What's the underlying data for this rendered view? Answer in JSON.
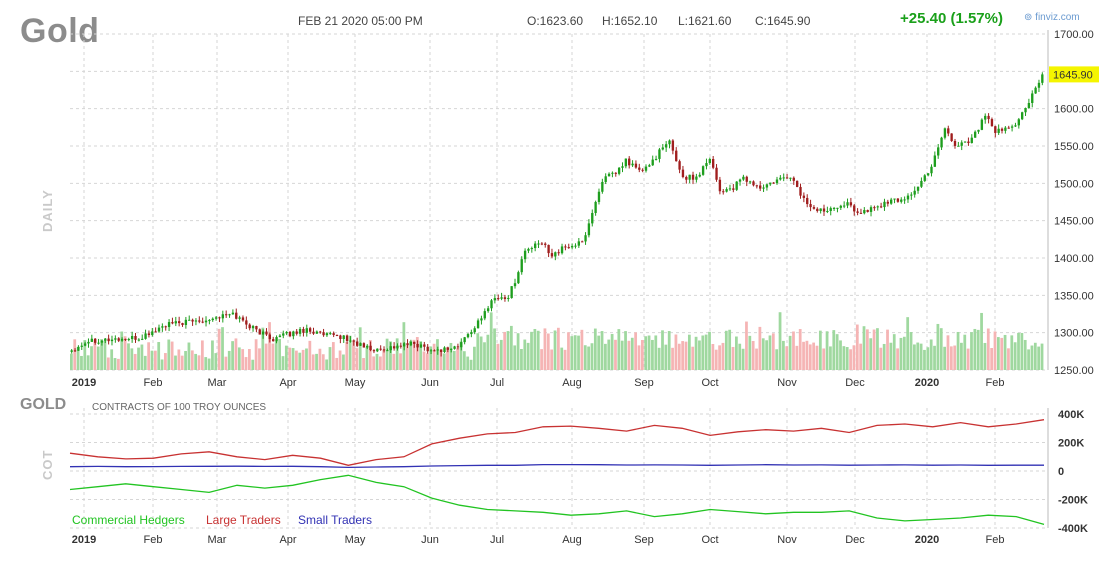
{
  "header": {
    "symbol": "Gold",
    "datetime": "FEB 21 2020 05:00 PM",
    "open": "O:1623.60",
    "high": "H:1652.10",
    "low": "L:1621.60",
    "close": "C:1645.90",
    "change": "+25.40 (1.57%)",
    "brand": "finviz.com",
    "period_label": "DAILY"
  },
  "cot": {
    "title": "GOLD",
    "caption": "CONTRACTS OF 100 TROY OUNCES",
    "side_label": "COT",
    "legend": [
      {
        "label": "Commercial Hedgers",
        "color": "#22c422"
      },
      {
        "label": "Large Traders",
        "color": "#c83232"
      },
      {
        "label": "Small Traders",
        "color": "#3232b4"
      }
    ]
  },
  "colors": {
    "up": "#1e9e1e",
    "down": "#a01e1e",
    "vol_up": "#9fd89f",
    "vol_down": "#f5b4b4",
    "grid": "#d6d6d6",
    "last_price_bg": "#f5f500"
  },
  "chart_data": [
    {
      "type": "candlestick",
      "title": "Gold",
      "x_labels": [
        "2019",
        "Feb",
        "Mar",
        "Apr",
        "May",
        "Jun",
        "Jul",
        "Aug",
        "Sep",
        "Oct",
        "Nov",
        "Dec",
        "2020",
        "Feb"
      ],
      "y_ticks": [
        "1700.00",
        "1650.00",
        "1600.00",
        "1550.00",
        "1500.00",
        "1450.00",
        "1400.00",
        "1350.00",
        "1300.00",
        "1250.00"
      ],
      "ylim": [
        1250,
        1700
      ],
      "last_price": "1645.90",
      "grid": true,
      "price_path": [
        [
          0,
          1277
        ],
        [
          5,
          1290
        ],
        [
          20,
          1292
        ],
        [
          28,
          1310
        ],
        [
          40,
          1318
        ],
        [
          48,
          1325
        ],
        [
          55,
          1303
        ],
        [
          60,
          1292
        ],
        [
          70,
          1305
        ],
        [
          75,
          1296
        ],
        [
          80,
          1295
        ],
        [
          85,
          1285
        ],
        [
          90,
          1276
        ],
        [
          97,
          1282
        ],
        [
          102,
          1285
        ],
        [
          108,
          1276
        ],
        [
          115,
          1281
        ],
        [
          118,
          1298
        ],
        [
          122,
          1318
        ],
        [
          125,
          1345
        ],
        [
          130,
          1348
        ],
        [
          132,
          1370
        ],
        [
          135,
          1410
        ],
        [
          140,
          1420
        ],
        [
          143,
          1405
        ],
        [
          148,
          1416
        ],
        [
          152,
          1420
        ],
        [
          155,
          1460
        ],
        [
          158,
          1505
        ],
        [
          162,
          1513
        ],
        [
          165,
          1530
        ],
        [
          170,
          1515
        ],
        [
          175,
          1542
        ],
        [
          178,
          1555
        ],
        [
          182,
          1508
        ],
        [
          186,
          1508
        ],
        [
          190,
          1536
        ],
        [
          193,
          1490
        ],
        [
          197,
          1494
        ],
        [
          200,
          1507
        ],
        [
          205,
          1493
        ],
        [
          210,
          1503
        ],
        [
          214,
          1510
        ],
        [
          218,
          1478
        ],
        [
          222,
          1462
        ],
        [
          230,
          1474
        ],
        [
          235,
          1460
        ],
        [
          242,
          1473
        ],
        [
          248,
          1480
        ],
        [
          252,
          1494
        ],
        [
          256,
          1524
        ],
        [
          258,
          1550
        ],
        [
          260,
          1575
        ],
        [
          263,
          1550
        ],
        [
          268,
          1560
        ],
        [
          272,
          1590
        ],
        [
          275,
          1568
        ],
        [
          280,
          1575
        ],
        [
          284,
          1600
        ],
        [
          287,
          1625
        ],
        [
          289,
          1646
        ]
      ],
      "volume_note": "daily volume bars colored by candle direction"
    },
    {
      "type": "line",
      "title": "COT",
      "x_labels": [
        "2019",
        "Feb",
        "Mar",
        "Apr",
        "May",
        "Jun",
        "Jul",
        "Aug",
        "Sep",
        "Oct",
        "Nov",
        "Dec",
        "2020",
        "Feb"
      ],
      "y_ticks": [
        "400K",
        "200K",
        "0",
        "-200K",
        "-400K"
      ],
      "ylim": [
        -400000,
        400000
      ],
      "series": [
        {
          "name": "Large Traders",
          "values": [
            125000,
            100000,
            85000,
            90000,
            120000,
            135000,
            100000,
            80000,
            110000,
            90000,
            40000,
            80000,
            100000,
            190000,
            230000,
            260000,
            270000,
            310000,
            315000,
            300000,
            280000,
            320000,
            300000,
            250000,
            275000,
            290000,
            280000,
            300000,
            270000,
            320000,
            330000,
            310000,
            340000,
            310000,
            330000,
            360000
          ]
        },
        {
          "name": "Small Traders",
          "values": [
            30000,
            32000,
            30000,
            31000,
            32000,
            33000,
            34000,
            32000,
            33000,
            30000,
            25000,
            28000,
            30000,
            35000,
            38000,
            40000,
            40000,
            45000,
            45000,
            44000,
            42000,
            43000,
            42000,
            40000,
            42000,
            44000,
            42000,
            43000,
            41000,
            42000,
            43000,
            41000,
            42000,
            40000,
            41000,
            41000
          ]
        },
        {
          "name": "Commercial Hedgers",
          "values": [
            -130000,
            -110000,
            -90000,
            -110000,
            -130000,
            -150000,
            -100000,
            -120000,
            -100000,
            -60000,
            -30000,
            -80000,
            -110000,
            -190000,
            -240000,
            -270000,
            -280000,
            -290000,
            -310000,
            -300000,
            -280000,
            -320000,
            -300000,
            -270000,
            -285000,
            -300000,
            -290000,
            -290000,
            -280000,
            -330000,
            -350000,
            -340000,
            -330000,
            -310000,
            -320000,
            -375000
          ]
        }
      ]
    }
  ]
}
